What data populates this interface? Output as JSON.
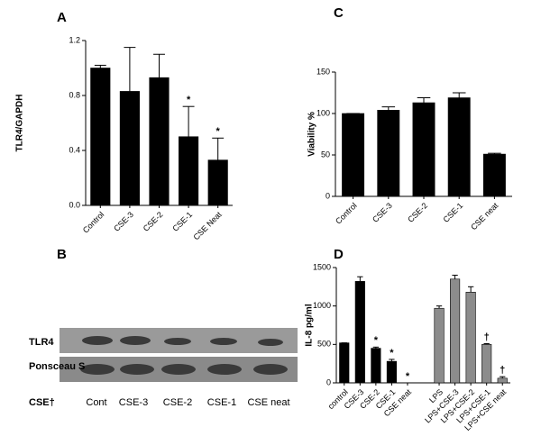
{
  "chart_data": [
    {
      "type": "bar",
      "title": "A",
      "y_label": "TLR4/GAPDH",
      "categories": [
        "Control",
        "CSE-3",
        "CSE-2",
        "CSE-1",
        "CSE Neat"
      ],
      "values": [
        1.0,
        0.83,
        0.93,
        0.5,
        0.33
      ],
      "errors": [
        0.02,
        0.32,
        0.17,
        0.22,
        0.16
      ],
      "colors": [
        "#000000",
        "#000000",
        "#000000",
        "#000000",
        "#000000"
      ],
      "markers": [
        null,
        null,
        null,
        "*",
        "*"
      ],
      "ylim": [
        0,
        1.2
      ],
      "yticks": [
        {
          "value": 0,
          "label": "0.0"
        },
        0.4,
        0.8,
        1.2
      ]
    },
    {
      "type": "bar",
      "title": "C",
      "y_label": "Viability %",
      "categories": [
        "Control",
        "CSE-3",
        "CSE-2",
        "CSE-1",
        "CSE neat"
      ],
      "values": [
        100,
        104,
        113,
        119,
        51
      ],
      "errors": [
        0,
        4,
        6,
        6,
        1
      ],
      "colors": [
        "#000000",
        "#000000",
        "#000000",
        "#000000",
        "#000000"
      ],
      "ylim": [
        0,
        150
      ],
      "yticks": [
        0,
        50,
        100,
        150
      ]
    },
    {
      "type": "bar",
      "title": "D",
      "y_label": "IL-8 pg/ml",
      "categories": [
        "control",
        "CSE-3",
        "CSE-2",
        "CSE-1",
        "CSE neat",
        "LPS",
        "LPS+CSE-3",
        "LPS+CSE-2",
        "LPS+CSE-1",
        "LPS+CSE neat"
      ],
      "values": [
        520,
        1320,
        450,
        280,
        0,
        970,
        1350,
        1180,
        500,
        60
      ],
      "errors": [
        0,
        60,
        15,
        25,
        0,
        30,
        50,
        70,
        10,
        20
      ],
      "colors": [
        "#000000",
        "#000000",
        "#000000",
        "#000000",
        "#000000",
        "#8c8c8c",
        "#8c8c8c",
        "#8c8c8c",
        "#8c8c8c",
        "#8c8c8c"
      ],
      "markers": [
        null,
        null,
        "*",
        "*",
        "*",
        null,
        null,
        null,
        "†",
        "†"
      ],
      "ylim": [
        0,
        1500
      ],
      "yticks": [
        0,
        500,
        1000,
        1500
      ]
    }
  ],
  "blot": {
    "title": "B",
    "rows": [
      "TLR4",
      "Ponsceau S"
    ],
    "lane_title": "CSE†",
    "lanes": [
      "Cont",
      "CSE-3",
      "CSE-2",
      "CSE-1",
      "CSE neat"
    ]
  }
}
